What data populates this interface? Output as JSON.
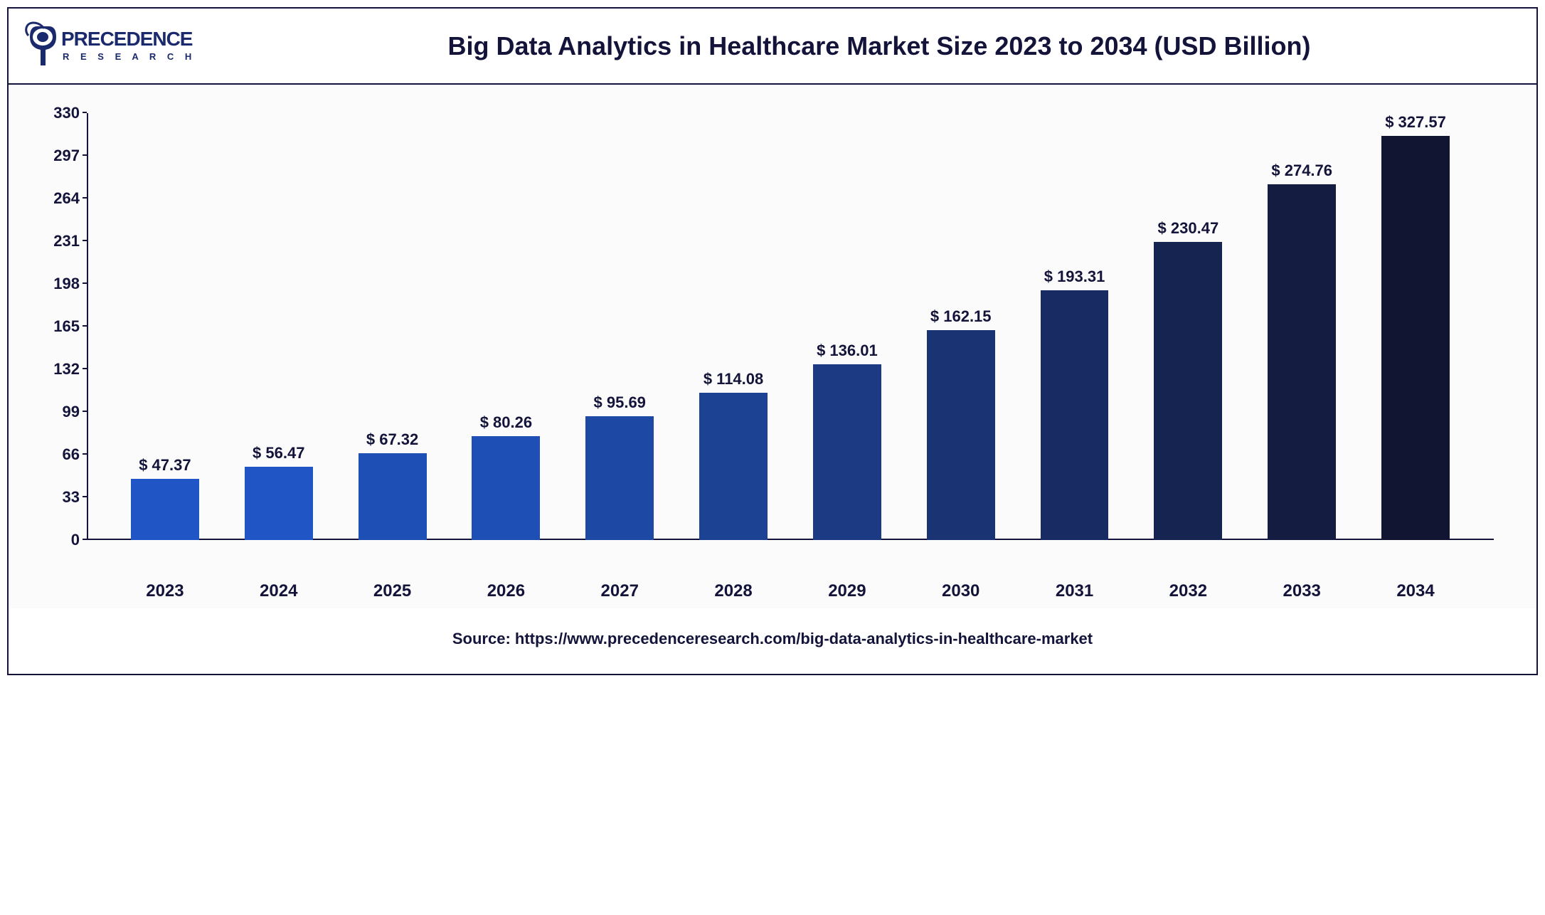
{
  "brand": {
    "name": "PRECEDENCE",
    "subtitle": "R E S E A R C H",
    "color": "#1a2a6c"
  },
  "chart": {
    "type": "bar",
    "title": "Big Data Analytics in Healthcare Market Size 2023 to 2034 (USD Billion)",
    "title_fontsize": 36,
    "title_color": "#14143a",
    "background_color": "#fbfbfc",
    "border_color": "#14143a",
    "categories": [
      "2023",
      "2024",
      "2025",
      "2026",
      "2027",
      "2028",
      "2029",
      "2030",
      "2031",
      "2032",
      "2033",
      "2034"
    ],
    "values": [
      47.37,
      56.47,
      67.32,
      80.26,
      95.69,
      114.08,
      136.01,
      162.15,
      193.31,
      230.47,
      274.76,
      327.57
    ],
    "value_labels": [
      "$ 47.37",
      "$ 56.47",
      "$ 67.32",
      "$ 80.26",
      "$ 95.69",
      "$ 114.08",
      "$ 136.01",
      "$ 162.15",
      "$ 193.31",
      "$ 230.47",
      "$ 274.76",
      "$ 327.57"
    ],
    "bar_colors": [
      "#1f55c4",
      "#1f55c4",
      "#1e4fb4",
      "#1e4fb4",
      "#1d49a4",
      "#1c4294",
      "#1b3a83",
      "#1a3373",
      "#182b62",
      "#162452",
      "#141c41",
      "#121531"
    ],
    "bar_width": 0.6,
    "ylim": [
      0,
      330
    ],
    "yticks": [
      0,
      33,
      66,
      99,
      132,
      165,
      198,
      231,
      264,
      297,
      330
    ],
    "axis_color": "#14143a",
    "label_fontsize": 22,
    "category_fontsize": 24
  },
  "source": "Source: https://www.precedenceresearch.com/big-data-analytics-in-healthcare-market"
}
